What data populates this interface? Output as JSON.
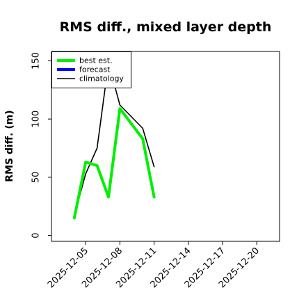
{
  "chart_data": {
    "type": "line",
    "title": "RMS diff., mixed layer depth",
    "xlabel": "",
    "ylabel": "RMS diff. (m)",
    "xlim": [
      "2025-12-02",
      "2025-12-22"
    ],
    "ylim": [
      -5,
      158
    ],
    "yticks": [
      0,
      50,
      100,
      150
    ],
    "xticks": [
      "2025-12-05",
      "2025-12-08",
      "2025-12-11",
      "2025-12-14",
      "2025-12-17",
      "2025-12-20"
    ],
    "highlight_tick": "2025-12-11",
    "highlight_color": "#1e7b1e",
    "grid": false,
    "legend_position": "top-left",
    "series": [
      {
        "name": "best est.",
        "color": "#00ee00",
        "x": [
          "2025-12-04",
          "2025-12-05",
          "2025-12-06",
          "2025-12-07",
          "2025-12-08",
          "2025-12-10",
          "2025-12-11"
        ],
        "y": [
          15,
          63,
          60,
          33,
          109,
          83,
          33
        ]
      },
      {
        "name": "forecast",
        "color": "#0000ff",
        "x": [],
        "y": []
      },
      {
        "name": "climatology",
        "color": "#000000",
        "x": [
          "2025-12-04",
          "2025-12-05",
          "2025-12-06",
          "2025-12-07",
          "2025-12-08",
          "2025-12-10",
          "2025-12-11"
        ],
        "y": [
          17,
          53,
          75,
          148,
          112,
          92,
          59
        ]
      }
    ]
  }
}
